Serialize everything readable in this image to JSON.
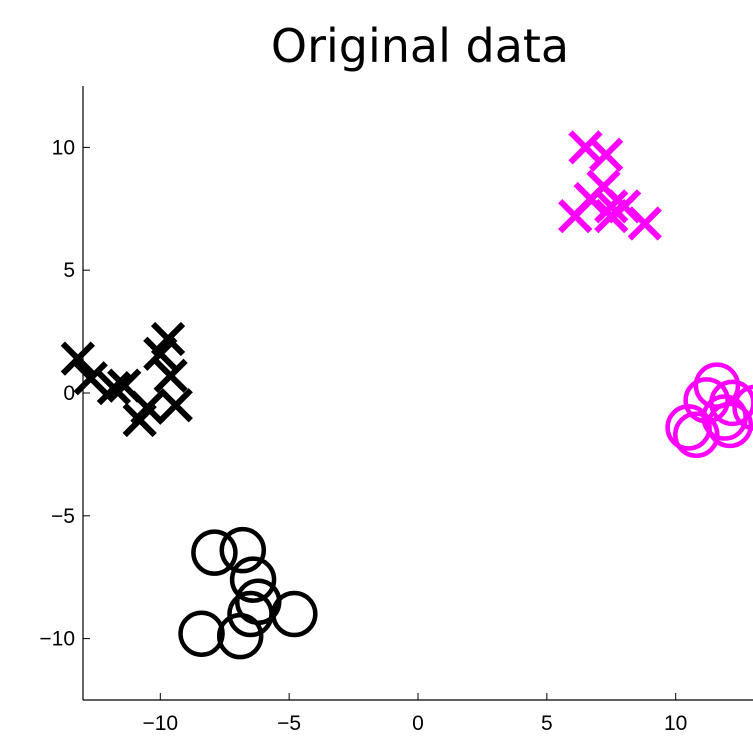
{
  "chart_data": {
    "type": "scatter",
    "title": "Original data",
    "xlabel": "",
    "ylabel": "",
    "xlim": [
      -13,
      13
    ],
    "ylim": [
      -12.5,
      12.5
    ],
    "xticks": [
      -10,
      -5,
      0,
      5,
      10
    ],
    "yticks": [
      -10,
      -5,
      0,
      5,
      10
    ],
    "xtick_labels": [
      "−10",
      "−5",
      "0",
      "5",
      "10"
    ],
    "ytick_labels": [
      "−10",
      "−5",
      "0",
      "5",
      "10"
    ],
    "grid": false,
    "legend": "none",
    "series": [
      {
        "marker": "x",
        "color": "#000000",
        "points": [
          {
            "x": -13.2,
            "y": 1.4
          },
          {
            "x": -12.7,
            "y": 0.6
          },
          {
            "x": -11.8,
            "y": 0.2
          },
          {
            "x": -11.4,
            "y": 0.3
          },
          {
            "x": -10.5,
            "y": -0.6
          },
          {
            "x": -10.8,
            "y": -1.1
          },
          {
            "x": -9.7,
            "y": 2.2
          },
          {
            "x": -10.0,
            "y": 1.6
          },
          {
            "x": -9.6,
            "y": 0.7
          },
          {
            "x": -9.4,
            "y": -0.5
          }
        ]
      },
      {
        "marker": "o",
        "color": "#000000",
        "points": [
          {
            "x": -7.9,
            "y": -6.5
          },
          {
            "x": -6.8,
            "y": -6.4
          },
          {
            "x": -6.4,
            "y": -7.6
          },
          {
            "x": -6.2,
            "y": -8.5
          },
          {
            "x": -6.5,
            "y": -9.0
          },
          {
            "x": -4.8,
            "y": -9.0
          },
          {
            "x": -8.4,
            "y": -9.8
          },
          {
            "x": -6.9,
            "y": -9.9
          }
        ]
      },
      {
        "marker": "x",
        "color": "#ff00ff",
        "points": [
          {
            "x": 6.5,
            "y": 10.0
          },
          {
            "x": 7.3,
            "y": 9.7
          },
          {
            "x": 7.2,
            "y": 8.4
          },
          {
            "x": 6.7,
            "y": 7.9
          },
          {
            "x": 7.5,
            "y": 7.6
          },
          {
            "x": 8.0,
            "y": 7.6
          },
          {
            "x": 6.1,
            "y": 7.2
          },
          {
            "x": 7.5,
            "y": 7.2
          },
          {
            "x": 8.8,
            "y": 6.9
          }
        ]
      },
      {
        "marker": "o",
        "color": "#ff00ff",
        "points": [
          {
            "x": 11.6,
            "y": 0.3
          },
          {
            "x": 11.2,
            "y": -0.3
          },
          {
            "x": 12.2,
            "y": -0.4
          },
          {
            "x": 13.1,
            "y": -0.6
          },
          {
            "x": 11.9,
            "y": -1.0
          },
          {
            "x": 12.1,
            "y": -1.3
          },
          {
            "x": 10.5,
            "y": -1.4
          },
          {
            "x": 10.8,
            "y": -1.7
          }
        ]
      }
    ]
  }
}
